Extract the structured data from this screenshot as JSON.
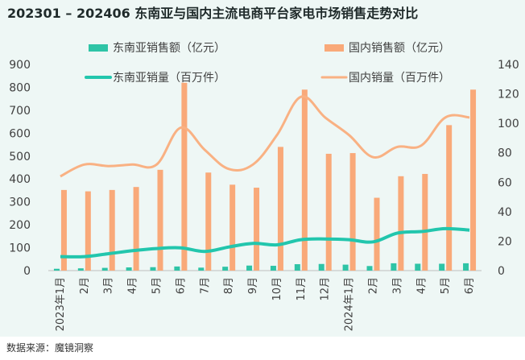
{
  "title": "202301 – 202406 东南亚与国内主流电商平台家电市场销售走势对比",
  "source": "数据来源：魔镜洞察",
  "colors": {
    "sea_bar": "#2ec4a6",
    "cn_bar": "#f9a979",
    "sea_line": "#22c6ad",
    "cn_line": "#f9b183"
  },
  "chart_data": {
    "type": "bar",
    "categories": [
      "2023年1月",
      "2月",
      "3月",
      "4月",
      "5月",
      "6月",
      "7月",
      "8月",
      "9月",
      "10月",
      "11月",
      "12月",
      "2024年1月",
      "2月",
      "3月",
      "4月",
      "5月",
      "6月"
    ],
    "series": [
      {
        "name": "东南亚销售额（亿元）",
        "kind": "bar",
        "axis": "left",
        "values": [
          8,
          10,
          12,
          14,
          15,
          18,
          13,
          17,
          22,
          21,
          28,
          29,
          26,
          20,
          32,
          30,
          30,
          32
        ]
      },
      {
        "name": "国内销售额（亿元）",
        "kind": "bar",
        "axis": "left",
        "values": [
          352,
          346,
          352,
          365,
          440,
          820,
          428,
          375,
          362,
          540,
          790,
          510,
          513,
          318,
          412,
          422,
          635,
          790
        ]
      },
      {
        "name": "东南亚销量（百万件）",
        "kind": "line",
        "axis": "right",
        "values": [
          9.5,
          9.5,
          11.5,
          13.5,
          15,
          15.5,
          13,
          16,
          18.5,
          17.5,
          21,
          21.5,
          21,
          19.5,
          25.5,
          26.5,
          28.5,
          27.5
        ]
      },
      {
        "name": "国内销量（百万件）",
        "kind": "line",
        "axis": "right",
        "values": [
          64,
          72,
          71,
          72,
          72,
          97,
          82,
          69,
          72,
          92,
          118,
          104,
          92,
          77,
          84,
          85,
          104,
          104
        ]
      }
    ],
    "y_left": {
      "min": 0,
      "max": 900,
      "ticks": [
        0,
        100,
        200,
        300,
        400,
        500,
        600,
        700,
        800,
        900
      ]
    },
    "y_right": {
      "min": 0,
      "max": 140,
      "ticks": [
        0,
        20,
        40,
        60,
        80,
        100,
        120,
        140
      ]
    },
    "legend_position": "top",
    "grid": false
  }
}
